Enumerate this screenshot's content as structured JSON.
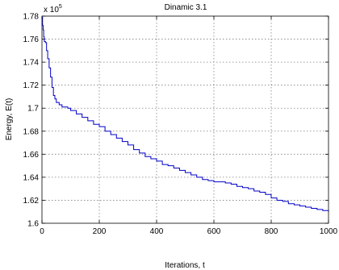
{
  "chart_data": {
    "type": "line",
    "title": "Dinamic 3.1",
    "xlabel": "Iterations, t",
    "ylabel": "Energy, E(t)",
    "y_scale_label": "x 10",
    "y_scale_exponent": "5",
    "xlim": [
      0,
      1000
    ],
    "ylim": [
      1.6,
      1.78
    ],
    "x_ticks": [
      0,
      200,
      400,
      600,
      800,
      1000
    ],
    "x_tick_labels": [
      "0",
      "200",
      "400",
      "600",
      "800",
      "1000"
    ],
    "y_ticks": [
      1.6,
      1.62,
      1.64,
      1.66,
      1.68,
      1.7,
      1.72,
      1.74,
      1.76,
      1.78
    ],
    "y_tick_labels": [
      "1.6",
      "1.62",
      "1.64",
      "1.66",
      "1.68",
      "1.7",
      "1.72",
      "1.74",
      "1.76",
      "1.78"
    ],
    "grid": true,
    "line_color": "#0000c8",
    "series": [
      {
        "x": [
          0,
          2,
          4,
          6,
          8,
          12,
          16,
          20,
          25,
          30,
          35,
          40,
          45,
          50,
          60,
          70,
          80,
          90,
          100,
          120,
          140,
          160,
          180,
          200,
          220,
          240,
          260,
          280,
          300,
          320,
          340,
          360,
          380,
          400,
          420,
          440,
          460,
          480,
          500,
          520,
          540,
          560,
          580,
          600,
          620,
          640,
          660,
          680,
          700,
          720,
          740,
          760,
          780,
          800,
          820,
          840,
          860,
          880,
          900,
          920,
          940,
          960,
          980,
          1000
        ],
        "values": [
          1.779,
          1.772,
          1.768,
          1.762,
          1.758,
          1.757,
          1.75,
          1.743,
          1.735,
          1.727,
          1.718,
          1.711,
          1.708,
          1.705,
          1.703,
          1.701,
          1.701,
          1.7,
          1.698,
          1.695,
          1.692,
          1.689,
          1.686,
          1.684,
          1.68,
          1.677,
          1.674,
          1.671,
          1.668,
          1.664,
          1.661,
          1.658,
          1.656,
          1.654,
          1.651,
          1.65,
          1.648,
          1.646,
          1.644,
          1.642,
          1.64,
          1.638,
          1.637,
          1.636,
          1.636,
          1.635,
          1.634,
          1.632,
          1.631,
          1.63,
          1.628,
          1.627,
          1.625,
          1.622,
          1.62,
          1.619,
          1.617,
          1.616,
          1.615,
          1.614,
          1.613,
          1.612,
          1.611,
          1.61
        ]
      }
    ]
  }
}
